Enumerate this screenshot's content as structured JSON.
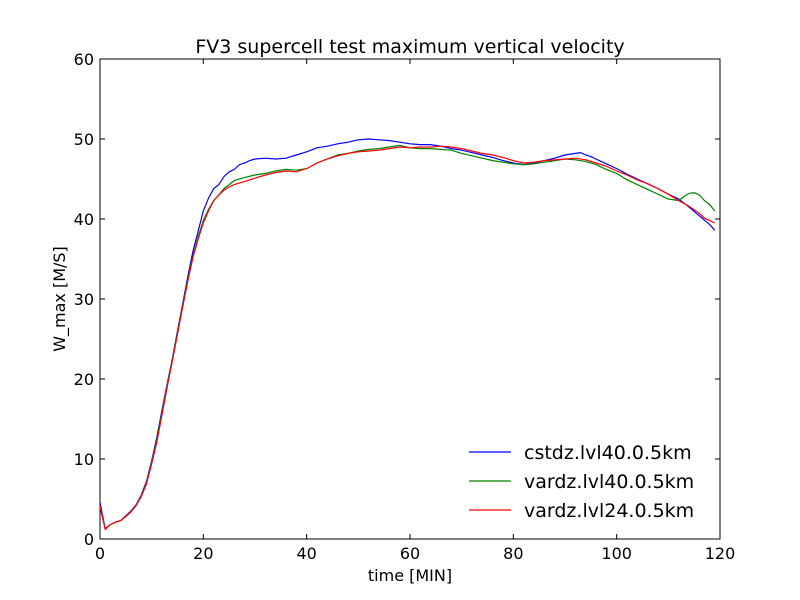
{
  "chart_data": {
    "type": "line",
    "title": "FV3 supercell test maximum vertical velocity",
    "xlabel": "time [MIN]",
    "ylabel": "W_max [M/S]",
    "xlim": [
      0,
      120
    ],
    "ylim": [
      0,
      60
    ],
    "xticks": [
      0,
      20,
      40,
      60,
      80,
      100,
      120
    ],
    "yticks": [
      0,
      10,
      20,
      30,
      40,
      50,
      60
    ],
    "grid": false,
    "legend_position": "lower-right",
    "series": [
      {
        "name": "cstdz.lvl40.0.5km",
        "color": "#0000ff",
        "x": [
          0,
          1,
          2,
          3,
          4,
          5,
          6,
          7,
          8,
          9,
          10,
          11,
          12,
          13,
          14,
          15,
          16,
          17,
          18,
          19,
          20,
          21,
          22,
          23,
          24,
          25,
          26,
          27,
          28,
          29,
          30,
          32,
          34,
          36,
          38,
          40,
          42,
          44,
          46,
          48,
          50,
          52,
          54,
          56,
          58,
          60,
          62,
          64,
          66,
          68,
          70,
          72,
          74,
          76,
          78,
          80,
          82,
          84,
          86,
          88,
          90,
          92,
          93,
          94,
          95,
          96,
          98,
          100,
          102,
          104,
          106,
          108,
          110,
          112,
          114,
          116,
          118,
          119
        ],
        "values": [
          4.6,
          1.3,
          1.8,
          2.1,
          2.3,
          2.9,
          3.5,
          4.3,
          5.5,
          7.2,
          9.8,
          12.7,
          16.1,
          19.4,
          22.5,
          26.0,
          29.4,
          32.8,
          36.0,
          38.5,
          41.0,
          42.6,
          43.8,
          44.3,
          45.3,
          45.9,
          46.2,
          46.8,
          47.0,
          47.3,
          47.5,
          47.6,
          47.5,
          47.6,
          48.0,
          48.4,
          48.9,
          49.1,
          49.4,
          49.6,
          49.9,
          50.0,
          49.9,
          49.8,
          49.6,
          49.4,
          49.3,
          49.3,
          49.1,
          48.8,
          48.6,
          48.3,
          48.0,
          47.7,
          47.3,
          47.0,
          46.8,
          47.0,
          47.3,
          47.6,
          48.0,
          48.2,
          48.3,
          48.0,
          47.8,
          47.5,
          46.9,
          46.3,
          45.6,
          45.0,
          44.4,
          43.8,
          43.1,
          42.5,
          41.5,
          40.4,
          39.3,
          38.6
        ]
      },
      {
        "name": "vardz.lvl40.0.5km",
        "color": "#008000",
        "x": [
          0,
          1,
          2,
          3,
          4,
          5,
          6,
          7,
          8,
          9,
          10,
          11,
          12,
          13,
          14,
          15,
          16,
          17,
          18,
          19,
          20,
          21,
          22,
          23,
          24,
          25,
          26,
          28,
          30,
          32,
          34,
          36,
          38,
          40,
          42,
          44,
          46,
          48,
          50,
          52,
          54,
          56,
          58,
          60,
          62,
          64,
          66,
          68,
          70,
          72,
          74,
          76,
          78,
          80,
          82,
          84,
          86,
          88,
          90,
          92,
          94,
          96,
          98,
          100,
          102,
          104,
          106,
          108,
          110,
          112,
          113,
          114,
          115,
          116,
          117,
          118,
          119
        ],
        "values": [
          4.0,
          1.3,
          1.8,
          2.1,
          2.3,
          2.8,
          3.4,
          4.2,
          5.4,
          7.0,
          9.6,
          12.4,
          15.8,
          19.2,
          22.4,
          25.8,
          29.2,
          32.4,
          35.4,
          37.8,
          39.8,
          41.2,
          42.3,
          43.0,
          43.8,
          44.3,
          44.8,
          45.2,
          45.5,
          45.7,
          46.0,
          46.2,
          46.1,
          46.3,
          47.0,
          47.5,
          48.0,
          48.2,
          48.5,
          48.7,
          48.8,
          49.0,
          49.2,
          48.9,
          48.8,
          48.8,
          48.7,
          48.6,
          48.2,
          47.9,
          47.6,
          47.3,
          47.1,
          46.9,
          46.8,
          46.9,
          47.1,
          47.3,
          47.5,
          47.4,
          47.2,
          46.8,
          46.2,
          45.7,
          44.9,
          44.3,
          43.7,
          43.1,
          42.5,
          42.3,
          42.8,
          43.2,
          43.3,
          43.0,
          42.3,
          41.8,
          41.0
        ]
      },
      {
        "name": "vardz.lvl24.0.5km",
        "color": "#ff0000",
        "x": [
          0,
          1,
          2,
          3,
          4,
          5,
          6,
          7,
          8,
          9,
          10,
          11,
          12,
          13,
          14,
          15,
          16,
          17,
          18,
          19,
          20,
          21,
          22,
          23,
          24,
          25,
          26,
          28,
          30,
          32,
          34,
          36,
          38,
          40,
          42,
          44,
          46,
          48,
          50,
          52,
          54,
          56,
          58,
          60,
          62,
          64,
          66,
          68,
          70,
          72,
          74,
          76,
          78,
          80,
          82,
          84,
          86,
          88,
          90,
          92,
          94,
          96,
          98,
          100,
          102,
          104,
          106,
          108,
          110,
          112,
          114,
          116,
          117,
          118,
          119
        ],
        "values": [
          4.2,
          1.2,
          1.8,
          2.1,
          2.3,
          2.8,
          3.4,
          4.2,
          5.3,
          6.9,
          9.4,
          12.1,
          15.5,
          19.0,
          22.2,
          25.6,
          29.0,
          32.2,
          35.2,
          37.5,
          39.5,
          41.0,
          42.3,
          43.0,
          43.6,
          44.0,
          44.3,
          44.7,
          45.1,
          45.5,
          45.8,
          46.0,
          45.9,
          46.3,
          47.0,
          47.5,
          47.9,
          48.2,
          48.4,
          48.5,
          48.6,
          48.8,
          49.0,
          48.9,
          49.0,
          49.0,
          49.1,
          49.0,
          48.8,
          48.5,
          48.2,
          48.0,
          47.7,
          47.3,
          47.0,
          47.1,
          47.3,
          47.4,
          47.5,
          47.6,
          47.4,
          47.0,
          46.6,
          46.0,
          45.5,
          44.9,
          44.4,
          43.8,
          43.1,
          42.3,
          41.6,
          40.7,
          40.1,
          39.8,
          39.5
        ]
      }
    ]
  }
}
